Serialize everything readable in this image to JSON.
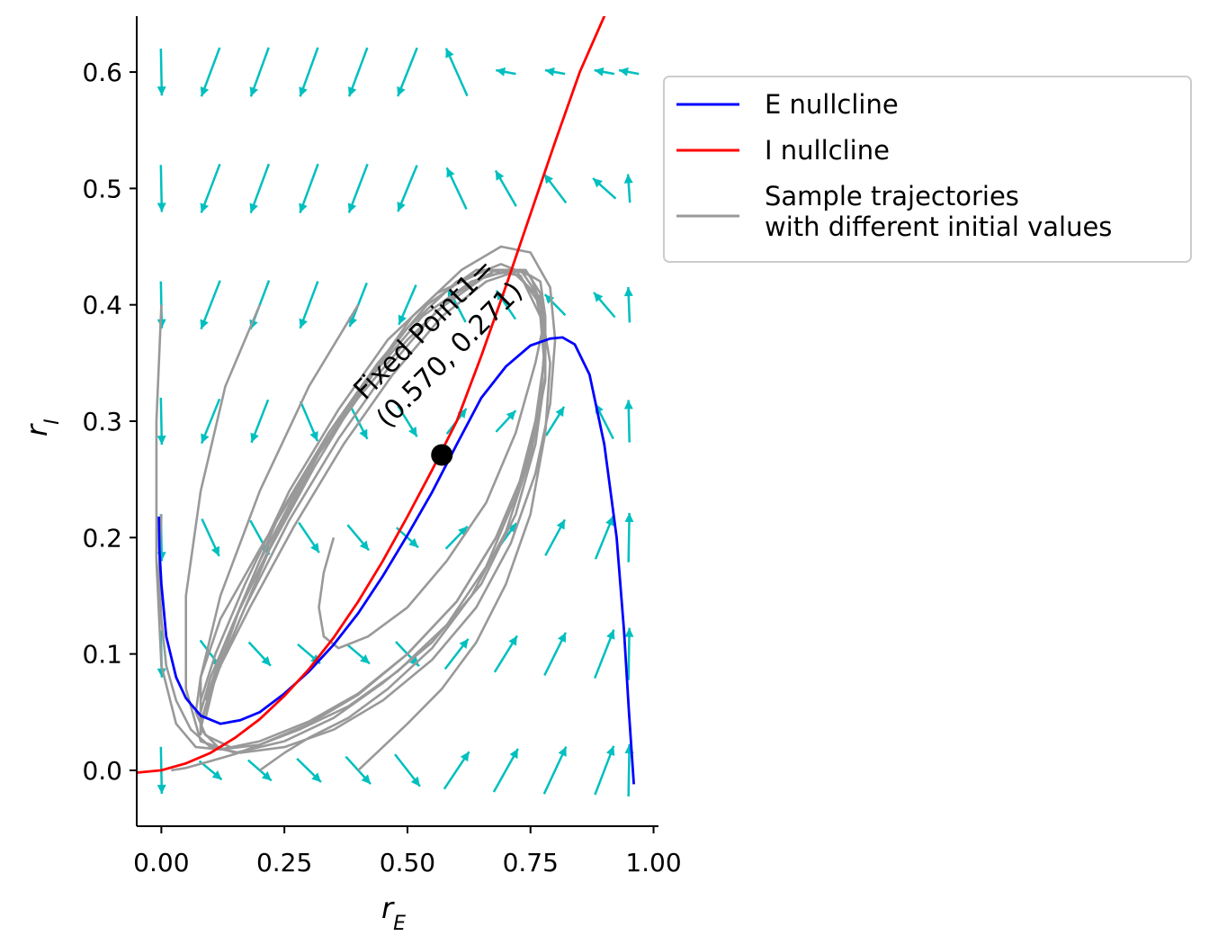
{
  "chart_data": {
    "type": "line",
    "xlabel": "r",
    "xlabel_sub": "E",
    "ylabel": "r",
    "ylabel_sub": "I",
    "xlim": [
      -0.05,
      1.01
    ],
    "ylim": [
      -0.048,
      0.648
    ],
    "xticks": [
      0.0,
      0.25,
      0.5,
      0.75,
      1.0
    ],
    "xtick_labels": [
      "0.00",
      "0.25",
      "0.50",
      "0.75",
      "1.00"
    ],
    "yticks": [
      0.0,
      0.1,
      0.2,
      0.3,
      0.4,
      0.5,
      0.6
    ],
    "ytick_labels": [
      "0.0",
      "0.1",
      "0.2",
      "0.3",
      "0.4",
      "0.5",
      "0.6"
    ],
    "legend_position": "outside right, upper",
    "series": [
      {
        "name": "E nullcline",
        "color": "#0000ff",
        "x": [
          -0.005,
          -0.004,
          0.0,
          0.01,
          0.03,
          0.05,
          0.08,
          0.12,
          0.16,
          0.2,
          0.25,
          0.3,
          0.35,
          0.4,
          0.45,
          0.5,
          0.55,
          0.6,
          0.65,
          0.7,
          0.75,
          0.79,
          0.815,
          0.84,
          0.87,
          0.9,
          0.925,
          0.94,
          0.95,
          0.96
        ],
        "y": [
          0.218,
          0.19,
          0.16,
          0.115,
          0.08,
          0.062,
          0.047,
          0.04,
          0.043,
          0.05,
          0.066,
          0.085,
          0.108,
          0.135,
          0.167,
          0.202,
          0.239,
          0.28,
          0.32,
          0.347,
          0.365,
          0.371,
          0.372,
          0.366,
          0.34,
          0.28,
          0.2,
          0.12,
          0.05,
          -0.012
        ]
      },
      {
        "name": "I nullcline",
        "color": "#ff0000",
        "x": [
          -0.05,
          0.0,
          0.05,
          0.1,
          0.15,
          0.2,
          0.25,
          0.3,
          0.35,
          0.4,
          0.45,
          0.5,
          0.55,
          0.6,
          0.65,
          0.7,
          0.75,
          0.8,
          0.85,
          0.9,
          0.915
        ],
        "y": [
          -0.002,
          0.0,
          0.006,
          0.015,
          0.028,
          0.044,
          0.064,
          0.087,
          0.114,
          0.145,
          0.18,
          0.218,
          0.258,
          0.3,
          0.356,
          0.416,
          0.478,
          0.54,
          0.6,
          0.648,
          0.66
        ]
      },
      {
        "name": "Sample trajectories\nwith different initial values",
        "color": "#999999",
        "trajectories": [
          {
            "x": [
              0.0,
              -0.01,
              -0.01,
              0.0,
              0.03,
              0.07,
              0.12,
              0.2,
              0.3,
              0.4,
              0.5,
              0.6,
              0.68,
              0.74,
              0.77,
              0.78,
              0.77,
              0.74,
              0.68,
              0.6,
              0.5,
              0.4,
              0.3,
              0.2,
              0.12,
              0.08,
              0.07,
              0.09,
              0.14
            ],
            "y": [
              0.4,
              0.3,
              0.18,
              0.09,
              0.04,
              0.02,
              0.018,
              0.025,
              0.042,
              0.066,
              0.1,
              0.145,
              0.2,
              0.26,
              0.32,
              0.37,
              0.41,
              0.43,
              0.43,
              0.41,
              0.37,
              0.32,
              0.26,
              0.19,
              0.13,
              0.08,
              0.05,
              0.03,
              0.02
            ]
          },
          {
            "x": [
              0.2,
              0.13,
              0.08,
              0.05,
              0.05,
              0.08,
              0.15,
              0.25,
              0.35,
              0.45,
              0.55,
              0.65,
              0.72,
              0.76,
              0.78,
              0.77,
              0.73,
              0.66,
              0.56,
              0.46,
              0.36,
              0.26,
              0.17,
              0.11,
              0.08,
              0.08
            ],
            "y": [
              0.4,
              0.33,
              0.24,
              0.15,
              0.07,
              0.025,
              0.015,
              0.025,
              0.045,
              0.075,
              0.11,
              0.16,
              0.22,
              0.28,
              0.34,
              0.39,
              0.425,
              0.43,
              0.41,
              0.37,
              0.31,
              0.24,
              0.16,
              0.1,
              0.06,
              0.03
            ]
          },
          {
            "x": [
              0.4,
              0.3,
              0.2,
              0.12,
              0.08,
              0.08,
              0.12,
              0.2,
              0.3,
              0.4,
              0.5,
              0.6,
              0.68,
              0.74,
              0.77,
              0.78,
              0.76,
              0.71,
              0.63,
              0.53,
              0.43,
              0.33,
              0.23,
              0.15,
              0.1,
              0.08
            ],
            "y": [
              0.4,
              0.33,
              0.24,
              0.15,
              0.08,
              0.035,
              0.018,
              0.022,
              0.04,
              0.065,
              0.1,
              0.145,
              0.2,
              0.26,
              0.32,
              0.37,
              0.41,
              0.43,
              0.42,
              0.39,
              0.34,
              0.28,
              0.2,
              0.13,
              0.08,
              0.05
            ]
          },
          {
            "x": [
              0.0,
              -0.005,
              0.0,
              0.01,
              0.03,
              0.06,
              0.1,
              0.16,
              0.25,
              0.35,
              0.45,
              0.55,
              0.64,
              0.71,
              0.76,
              0.79,
              0.8,
              0.79,
              0.75,
              0.69,
              0.61,
              0.51,
              0.41,
              0.31,
              0.22,
              0.15,
              0.1,
              0.08
            ],
            "y": [
              0.22,
              0.17,
              0.13,
              0.09,
              0.06,
              0.035,
              0.02,
              0.015,
              0.02,
              0.035,
              0.06,
              0.095,
              0.14,
              0.195,
              0.255,
              0.315,
              0.37,
              0.415,
              0.445,
              0.45,
              0.43,
              0.39,
              0.33,
              0.26,
              0.19,
              0.12,
              0.07,
              0.04
            ]
          },
          {
            "x": [
              0.35,
              0.33,
              0.32,
              0.33,
              0.36,
              0.42,
              0.5,
              0.58,
              0.66,
              0.72,
              0.76,
              0.78,
              0.77,
              0.73,
              0.66,
              0.57,
              0.47,
              0.37,
              0.27,
              0.18,
              0.12,
              0.09,
              0.08
            ],
            "y": [
              0.2,
              0.17,
              0.14,
              0.115,
              0.105,
              0.115,
              0.14,
              0.18,
              0.23,
              0.29,
              0.35,
              0.39,
              0.42,
              0.43,
              0.42,
              0.39,
              0.34,
              0.28,
              0.21,
              0.14,
              0.09,
              0.055,
              0.035
            ]
          },
          {
            "x": [
              0.02,
              0.05,
              0.1,
              0.15,
              0.2,
              0.28,
              0.38,
              0.48,
              0.58,
              0.66,
              0.72,
              0.76,
              0.78,
              0.77,
              0.73,
              0.66,
              0.56,
              0.46,
              0.36,
              0.26,
              0.17,
              0.11,
              0.08
            ],
            "y": [
              0.0,
              0.002,
              0.008,
              0.014,
              0.022,
              0.035,
              0.055,
              0.085,
              0.125,
              0.175,
              0.235,
              0.3,
              0.36,
              0.405,
              0.43,
              0.425,
              0.395,
              0.345,
              0.285,
              0.215,
              0.14,
              0.08,
              0.04
            ]
          },
          {
            "x": [
              0.2,
              0.25,
              0.3,
              0.38,
              0.46,
              0.55,
              0.63,
              0.7,
              0.75,
              0.78,
              0.78,
              0.75,
              0.69,
              0.6,
              0.5,
              0.4,
              0.3,
              0.2,
              0.13,
              0.09
            ],
            "y": [
              0.0,
              0.015,
              0.028,
              0.045,
              0.07,
              0.105,
              0.15,
              0.205,
              0.27,
              0.335,
              0.39,
              0.425,
              0.435,
              0.42,
              0.38,
              0.325,
              0.26,
              0.18,
              0.11,
              0.06
            ]
          },
          {
            "x": [
              0.4,
              0.45,
              0.5,
              0.57,
              0.64,
              0.7,
              0.75,
              0.78,
              0.79,
              0.77,
              0.72,
              0.64,
              0.54,
              0.44,
              0.34,
              0.24,
              0.16,
              0.11,
              0.09
            ],
            "y": [
              0.0,
              0.02,
              0.04,
              0.07,
              0.11,
              0.16,
              0.22,
              0.29,
              0.35,
              0.4,
              0.43,
              0.43,
              0.4,
              0.35,
              0.29,
              0.22,
              0.14,
              0.08,
              0.045
            ]
          }
        ]
      }
    ],
    "fixed_point": {
      "x": 0.57,
      "y": 0.271,
      "label_line1": "Fixed Point1=",
      "label_line2": "(0.570, 0.271)"
    },
    "vector_field": {
      "color": "#00bfbf",
      "x_grid": [
        0.0,
        0.1,
        0.2,
        0.3,
        0.4,
        0.5,
        0.6,
        0.7,
        0.8,
        0.9,
        0.95
      ],
      "y_grid": [
        0.0,
        0.1,
        0.2,
        0.3,
        0.4,
        0.5,
        0.6
      ]
    }
  }
}
